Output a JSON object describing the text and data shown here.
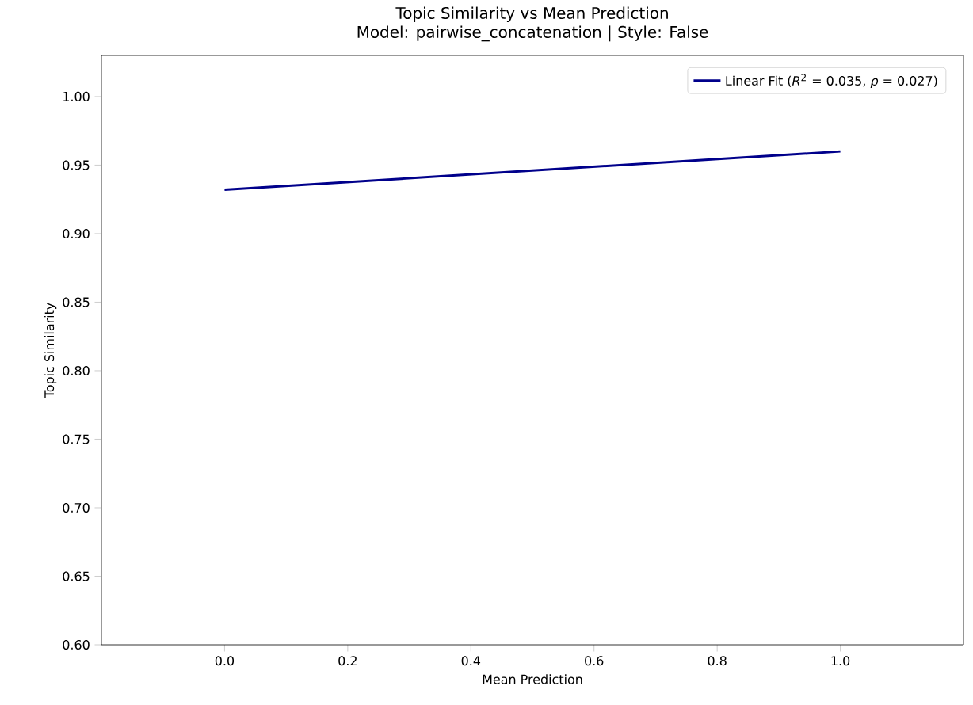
{
  "chart_data": {
    "type": "line",
    "title": "Topic Similarity vs Mean Prediction",
    "subtitle": "Model: pairwise_concatenation | Style: False",
    "xlabel": "Mean Prediction",
    "ylabel": "Topic Similarity",
    "series": [
      {
        "name": "Linear Fit (*R*$^{2}$ = 0.035, *ρ* = 0.027)",
        "color": "#00008b",
        "x": [
          0.0,
          1.0
        ],
        "values": [
          0.932,
          0.96
        ]
      }
    ],
    "xlim": [
      -0.2,
      1.2
    ],
    "xticks": [
      {
        "value": 0,
        "label": "0.0"
      },
      0.2,
      0.4,
      0.6,
      0.8,
      {
        "value": 1,
        "label": "1.0"
      }
    ],
    "ylim": [
      0.6,
      1.03
    ],
    "yticks": [
      {
        "value": 0.6,
        "label": "0.60"
      },
      0.65,
      {
        "value": 0.7,
        "label": "0.70"
      },
      0.75,
      {
        "value": 0.8,
        "label": "0.80"
      },
      0.85,
      {
        "value": 0.9,
        "label": "0.90"
      },
      0.95,
      {
        "value": 1.0,
        "label": "1.00"
      }
    ],
    "legend": "top right",
    "grid": false,
    "marker": "none",
    "line_style": "solid"
  }
}
